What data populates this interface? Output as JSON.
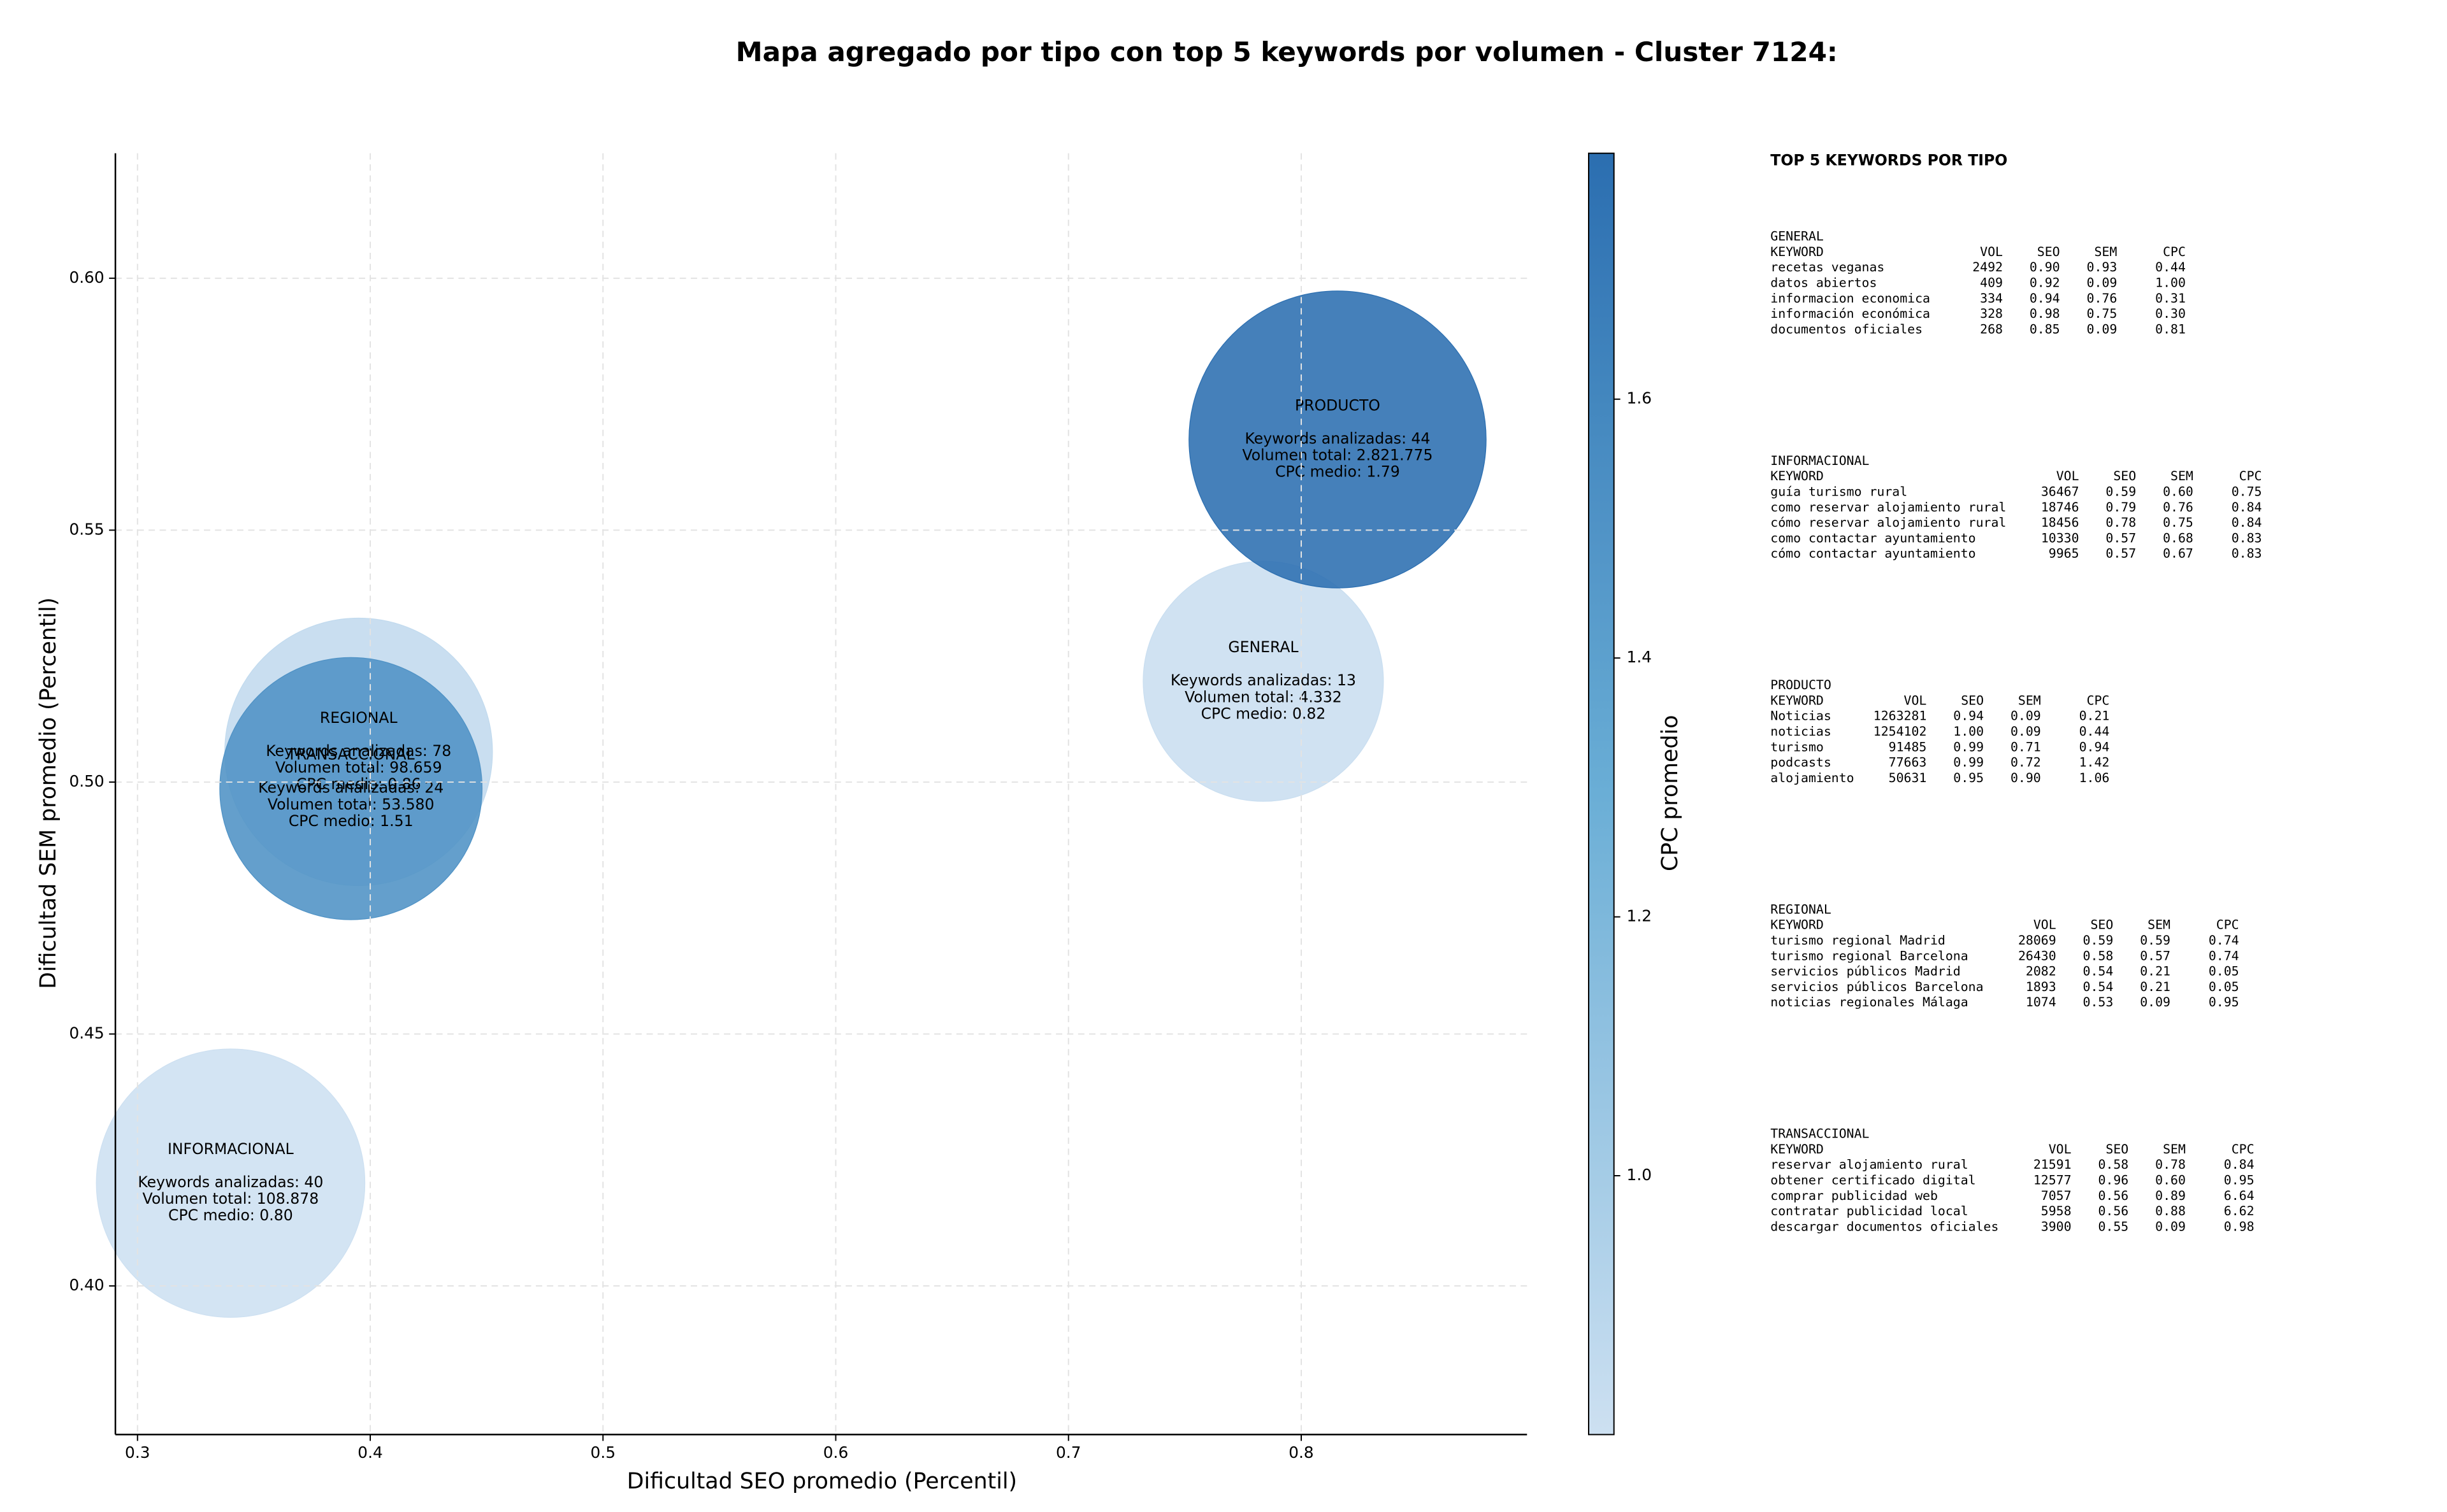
{
  "chart_data": {
    "type": "bubble",
    "title": "Mapa agregado por tipo con top 5 keywords por volumen - Cluster 7124:",
    "xlabel": "Dificultad SEO promedio (Percentil)",
    "ylabel": "Dificultad SEM promedio (Percentil)",
    "xlim": [
      0.2905,
      0.897
    ],
    "ylim": [
      0.3705,
      0.6248
    ],
    "xticks": [
      0.3,
      0.4,
      0.5,
      0.6,
      0.7,
      0.8
    ],
    "yticks": [
      {
        "value": 0.4,
        "label": "0.40"
      },
      {
        "value": 0.45,
        "label": "0.45"
      },
      {
        "value": 0.5,
        "label": "0.50"
      },
      {
        "value": 0.55,
        "label": "0.55"
      },
      {
        "value": 0.6,
        "label": "0.60"
      }
    ],
    "grid": true,
    "size_scale": "log",
    "colormap": "Blues",
    "colorbar_label": "CPC promedio",
    "clim": [
      0.8,
      1.79
    ],
    "cticks": [
      {
        "value": 1.0,
        "label": "1.0"
      },
      {
        "value": 1.2,
        "label": "1.2"
      },
      {
        "value": 1.4,
        "label": "1.4"
      },
      {
        "value": 1.6,
        "label": "1.6"
      }
    ],
    "points": [
      {
        "name": "GENERAL",
        "x": 0.7837,
        "y": 0.52,
        "size": 4332,
        "cpc": 0.82,
        "keywords": 13,
        "value_labels": [
          "Keywords analizadas: 13",
          "Volumen total: 4.332",
          "CPC medio: 0.82"
        ]
      },
      {
        "name": "INFORMACIONAL",
        "x": 0.34,
        "y": 0.4204,
        "size": 108878,
        "cpc": 0.8,
        "keywords": 40,
        "value_labels": [
          "Keywords analizadas: 40",
          "Volumen total: 108.878",
          "CPC medio: 0.80"
        ]
      },
      {
        "name": "PRODUCTO",
        "x": 0.8156,
        "y": 0.568,
        "size": 2821775,
        "cpc": 1.79,
        "keywords": 44,
        "value_labels": [
          "Keywords analizadas: 44",
          "Volumen total: 2.821.775",
          "CPC medio: 1.79"
        ]
      },
      {
        "name": "REGIONAL",
        "x": 0.395,
        "y": 0.506,
        "size": 98659,
        "cpc": 0.86,
        "keywords": 78,
        "value_labels": [
          "Keywords analizadas: 78",
          "Volumen total: 98.659",
          "CPC medio: 0.86"
        ]
      },
      {
        "name": "TRANSACCIONAL",
        "x": 0.3917,
        "y": 0.4987,
        "size": 53580,
        "cpc": 1.51,
        "keywords": 24,
        "value_labels": [
          "Keywords analizadas: 24",
          "Volumen total: 53.580",
          "CPC medio: 1.51"
        ]
      }
    ]
  },
  "side_panel": {
    "title": "TOP 5 KEYWORDS POR TIPO",
    "columns": [
      "KEYWORD",
      "VOL",
      "SEO",
      "SEM",
      "CPC"
    ],
    "sections": [
      {
        "name": "GENERAL",
        "rows": [
          [
            "recetas veganas",
            "2492",
            "0.90",
            "0.93",
            "0.44"
          ],
          [
            "datos abiertos",
            "409",
            "0.92",
            "0.09",
            "1.00"
          ],
          [
            "informacion economica",
            "334",
            "0.94",
            "0.76",
            "0.31"
          ],
          [
            "información económica",
            "328",
            "0.98",
            "0.75",
            "0.30"
          ],
          [
            "documentos oficiales",
            "268",
            "0.85",
            "0.09",
            "0.81"
          ]
        ]
      },
      {
        "name": "INFORMACIONAL",
        "rows": [
          [
            "guía turismo rural",
            "36467",
            "0.59",
            "0.60",
            "0.75"
          ],
          [
            "como reservar alojamiento rural",
            "18746",
            "0.79",
            "0.76",
            "0.84"
          ],
          [
            "cómo reservar alojamiento rural",
            "18456",
            "0.78",
            "0.75",
            "0.84"
          ],
          [
            "como contactar ayuntamiento",
            "10330",
            "0.57",
            "0.68",
            "0.83"
          ],
          [
            "cómo contactar ayuntamiento",
            "9965",
            "0.57",
            "0.67",
            "0.83"
          ]
        ]
      },
      {
        "name": "PRODUCTO",
        "rows": [
          [
            "Noticias",
            "1263281",
            "0.94",
            "0.09",
            "0.21"
          ],
          [
            "noticias",
            "1254102",
            "1.00",
            "0.09",
            "0.44"
          ],
          [
            "turismo",
            "91485",
            "0.99",
            "0.71",
            "0.94"
          ],
          [
            "podcasts",
            "77663",
            "0.99",
            "0.72",
            "1.42"
          ],
          [
            "alojamiento",
            "50631",
            "0.95",
            "0.90",
            "1.06"
          ]
        ]
      },
      {
        "name": "REGIONAL",
        "rows": [
          [
            "turismo regional Madrid",
            "28069",
            "0.59",
            "0.59",
            "0.74"
          ],
          [
            "turismo regional Barcelona",
            "26430",
            "0.58",
            "0.57",
            "0.74"
          ],
          [
            "servicios públicos Madrid",
            "2082",
            "0.54",
            "0.21",
            "0.05"
          ],
          [
            "servicios públicos Barcelona",
            "1893",
            "0.54",
            "0.21",
            "0.05"
          ],
          [
            "noticias regionales Málaga",
            "1074",
            "0.53",
            "0.09",
            "0.95"
          ]
        ]
      },
      {
        "name": "TRANSACCIONAL",
        "rows": [
          [
            "reservar alojamiento rural",
            "21591",
            "0.58",
            "0.78",
            "0.84"
          ],
          [
            "obtener certificado digital",
            "12577",
            "0.96",
            "0.60",
            "0.95"
          ],
          [
            "comprar publicidad web",
            "7057",
            "0.56",
            "0.89",
            "6.64"
          ],
          [
            "contratar publicidad local",
            "5958",
            "0.56",
            "0.88",
            "6.62"
          ],
          [
            "descargar documentos oficiales",
            "3900",
            "0.55",
            "0.09",
            "0.98"
          ]
        ]
      }
    ]
  }
}
